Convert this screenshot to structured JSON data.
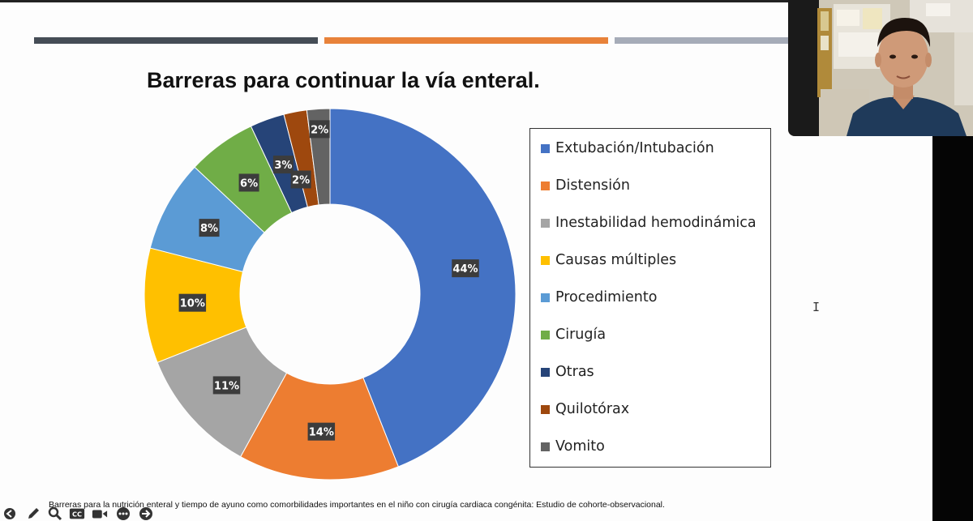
{
  "slide": {
    "title": "Barreras para continuar la vía enteral.",
    "footnote": "Barreras para la nutrición enteral y tiempo de ayuno como comorbilidades importantes en el niño con cirugía cardiaca congénita: Estudio de cohorte-observacional."
  },
  "chart_data": {
    "type": "pie",
    "donut": true,
    "title": "Barreras para continuar la vía enteral.",
    "legend_position": "right",
    "categories": [
      "Extubación/Intubación",
      "Distensión",
      "Inestabilidad hemodinámica",
      "Causas múltiples",
      "Procedimiento",
      "Cirugía",
      "Otras",
      "Quilotórax",
      "Vomito"
    ],
    "values": [
      44,
      14,
      11,
      10,
      8,
      6,
      3,
      2,
      2
    ],
    "labels": [
      "44%",
      "14%",
      "11%",
      "10%",
      "8%",
      "6%",
      "3%",
      "2%",
      "2%"
    ],
    "colors": [
      "#4472c4",
      "#ed7d31",
      "#a5a5a5",
      "#ffc000",
      "#5b9bd5",
      "#70ad47",
      "#264478",
      "#9e480e",
      "#636363"
    ]
  },
  "toolbar": {
    "icons": [
      "back-arrow-icon",
      "pen-icon",
      "zoom-icon",
      "closed-captions-icon",
      "camera-icon",
      "more-options-icon",
      "forward-arrow-icon"
    ],
    "cc_label": "CC"
  },
  "cursor": "I"
}
